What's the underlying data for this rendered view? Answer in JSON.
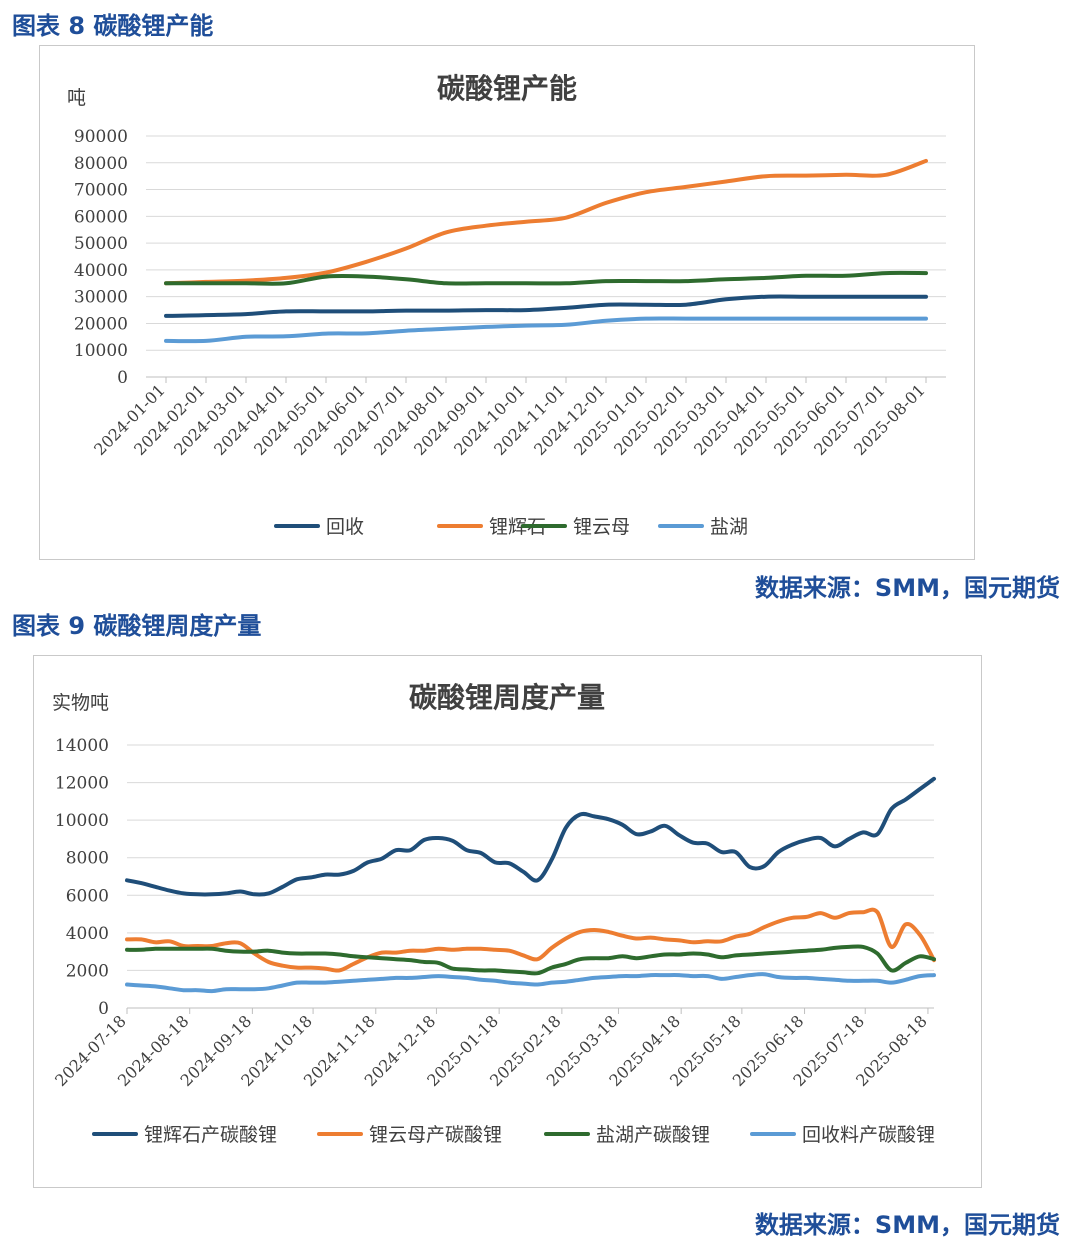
{
  "figures": [
    {
      "caption": "图表 8 碳酸锂产能",
      "source": "数据来源：SMM，国元期货"
    },
    {
      "caption": "图表 9 碳酸锂周度产量",
      "source": "数据来源：SMM，国元期货"
    }
  ],
  "chart_data": [
    {
      "type": "line",
      "title": "碳酸锂产能",
      "ylabel": "吨",
      "xlabel": "",
      "ylim": [
        0,
        90000
      ],
      "yticks": [
        0,
        10000,
        20000,
        30000,
        40000,
        50000,
        60000,
        70000,
        80000,
        90000
      ],
      "grid": true,
      "legend_position": "bottom",
      "x_ticks": [
        "2024-01-01",
        "2024-02-01",
        "2024-03-01",
        "2024-04-01",
        "2024-05-01",
        "2024-06-01",
        "2024-07-01",
        "2024-08-01",
        "2024-09-01",
        "2024-10-01",
        "2024-11-01",
        "2024-12-01",
        "2025-01-01",
        "2025-02-01",
        "2025-03-01",
        "2025-04-01",
        "2025-05-01",
        "2025-06-01",
        "2025-07-01",
        "2025-08-01"
      ],
      "x": [
        "2024-01-01",
        "2024-02-01",
        "2024-03-01",
        "2024-04-01",
        "2024-05-01",
        "2024-06-01",
        "2024-07-01",
        "2024-08-01",
        "2024-09-01",
        "2024-10-01",
        "2024-11-01",
        "2024-12-01",
        "2025-01-01",
        "2025-02-01",
        "2025-03-01",
        "2025-04-01",
        "2025-05-01",
        "2025-06-01",
        "2025-07-01",
        "2025-08-01"
      ],
      "series": [
        {
          "name": "回收",
          "color": "#1f4e79",
          "values": [
            22800,
            23100,
            23500,
            24500,
            24500,
            24500,
            24800,
            24800,
            25000,
            25000,
            25800,
            27000,
            27000,
            27000,
            29000,
            30000,
            30000,
            30000,
            30000,
            30000
          ]
        },
        {
          "name": "锂辉石",
          "color": "#ed7d31",
          "values": [
            35000,
            35500,
            36000,
            37000,
            39000,
            43000,
            48000,
            54000,
            56500,
            58000,
            59500,
            65000,
            69000,
            71000,
            73000,
            75000,
            75200,
            75500,
            75500,
            80700
          ]
        },
        {
          "name": "锂云母",
          "color": "#2e6b2e",
          "values": [
            35000,
            35000,
            35000,
            35000,
            37500,
            37500,
            36500,
            35000,
            35000,
            35000,
            35000,
            35800,
            35800,
            35800,
            36500,
            37000,
            37800,
            37800,
            38800,
            38800
          ]
        },
        {
          "name": "盐湖",
          "color": "#5b9bd5",
          "values": [
            13500,
            13500,
            15000,
            15200,
            16200,
            16300,
            17300,
            18000,
            18700,
            19200,
            19500,
            21000,
            21800,
            21800,
            21800,
            21800,
            21800,
            21800,
            21800,
            21800
          ]
        }
      ]
    },
    {
      "type": "line",
      "title": "碳酸锂周度产量",
      "ylabel": "实物吨",
      "xlabel": "",
      "ylim": [
        0,
        14000
      ],
      "yticks": [
        0,
        2000,
        4000,
        6000,
        8000,
        10000,
        12000,
        14000
      ],
      "grid": true,
      "legend_position": "bottom",
      "x_ticks": [
        "2024-07-18",
        "2024-08-18",
        "2024-09-18",
        "2024-10-18",
        "2024-11-18",
        "2024-12-18",
        "2025-01-18",
        "2025-02-18",
        "2025-03-18",
        "2025-04-18",
        "2025-05-18",
        "2025-06-18",
        "2025-07-18",
        "2025-08-18"
      ],
      "x_start": "2024-07-18",
      "x_end": "2025-08-21",
      "series": [
        {
          "name": "锂辉石产碳酸锂",
          "color": "#1f4e79",
          "values": [
            6800,
            6650,
            6450,
            6250,
            6100,
            6050,
            6050,
            6100,
            6200,
            6050,
            6100,
            6450,
            6850,
            6950,
            7100,
            7100,
            7300,
            7750,
            7950,
            8400,
            8400,
            8950,
            9050,
            8900,
            8400,
            8250,
            7750,
            7700,
            7250,
            6800,
            7900,
            9600,
            10300,
            10200,
            10050,
            9750,
            9250,
            9400,
            9700,
            9200,
            8800,
            8750,
            8300,
            8300,
            7500,
            7550,
            8300,
            8700,
            8950,
            9050,
            8600,
            9000,
            9350,
            9250,
            10600,
            11100,
            11650,
            12200
          ]
        },
        {
          "name": "锂云母产碳酸锂",
          "color": "#ed7d31",
          "values": [
            3650,
            3650,
            3500,
            3550,
            3300,
            3300,
            3300,
            3450,
            3450,
            2900,
            2450,
            2250,
            2150,
            2150,
            2100,
            2000,
            2350,
            2700,
            2950,
            2950,
            3050,
            3050,
            3150,
            3100,
            3150,
            3150,
            3100,
            3050,
            2800,
            2600,
            3200,
            3700,
            4050,
            4150,
            4050,
            3850,
            3700,
            3750,
            3650,
            3600,
            3500,
            3550,
            3550,
            3800,
            3950,
            4300,
            4600,
            4800,
            4850,
            5050,
            4800,
            5050,
            5100,
            5100,
            3250,
            4450,
            3900,
            2550
          ]
        },
        {
          "name": "盐湖产碳酸锂",
          "color": "#2e6b2e",
          "values": [
            3100,
            3100,
            3150,
            3150,
            3150,
            3150,
            3150,
            3050,
            3000,
            3000,
            3050,
            2950,
            2900,
            2900,
            2900,
            2850,
            2750,
            2700,
            2650,
            2600,
            2550,
            2450,
            2400,
            2100,
            2050,
            2000,
            2000,
            1950,
            1900,
            1850,
            2150,
            2350,
            2600,
            2650,
            2650,
            2750,
            2650,
            2750,
            2850,
            2850,
            2900,
            2850,
            2700,
            2800,
            2850,
            2900,
            2950,
            3000,
            3050,
            3100,
            3200,
            3250,
            3250,
            2900,
            2000,
            2400,
            2750,
            2600
          ]
        },
        {
          "name": "回收料产碳酸锂",
          "color": "#5b9bd5",
          "values": [
            1250,
            1200,
            1150,
            1050,
            950,
            950,
            900,
            1000,
            1000,
            1000,
            1050,
            1200,
            1350,
            1350,
            1350,
            1400,
            1450,
            1500,
            1550,
            1600,
            1600,
            1650,
            1700,
            1650,
            1600,
            1500,
            1450,
            1350,
            1300,
            1250,
            1350,
            1400,
            1500,
            1600,
            1650,
            1700,
            1700,
            1750,
            1750,
            1750,
            1700,
            1700,
            1550,
            1650,
            1750,
            1800,
            1650,
            1600,
            1600,
            1550,
            1500,
            1450,
            1450,
            1450,
            1350,
            1500,
            1700,
            1750
          ]
        }
      ]
    }
  ]
}
